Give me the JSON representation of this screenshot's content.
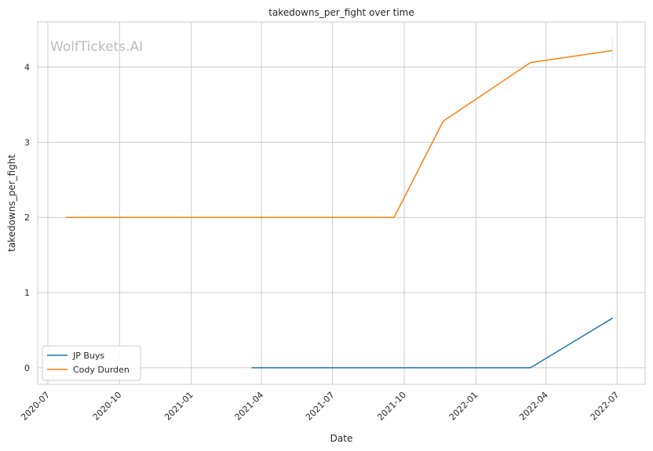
{
  "watermark": "WolfTickets.AI",
  "chart_data": {
    "type": "line",
    "title": "takedowns_per_fight over time",
    "xlabel": "Date",
    "ylabel": "takedowns_per_fight",
    "x_ticks": [
      "2020-07",
      "2020-10",
      "2021-01",
      "2021-04",
      "2021-07",
      "2021-10",
      "2022-01",
      "2022-04",
      "2022-07"
    ],
    "x_range": [
      "2020-06-18",
      "2022-08-06"
    ],
    "y_ticks": [
      0,
      1,
      2,
      3,
      4
    ],
    "ylim": [
      -0.22,
      4.6
    ],
    "grid": true,
    "legend_position": "lower-left",
    "series": [
      {
        "name": "JP Buys",
        "color": "#1f77b4",
        "points": [
          {
            "x": "2021-03-20",
            "y": 0
          },
          {
            "x": "2022-03-12",
            "y": 0
          },
          {
            "x": "2022-06-25",
            "y": 0.66
          }
        ]
      },
      {
        "name": "Cody Durden",
        "color": "#ff7f0e",
        "points": [
          {
            "x": "2020-07-25",
            "y": 2
          },
          {
            "x": "2021-09-18",
            "y": 2
          },
          {
            "x": "2021-11-20",
            "y": 3.28
          },
          {
            "x": "2022-03-12",
            "y": 4.06
          },
          {
            "x": "2022-06-25",
            "y": 4.22
          }
        ]
      }
    ]
  }
}
